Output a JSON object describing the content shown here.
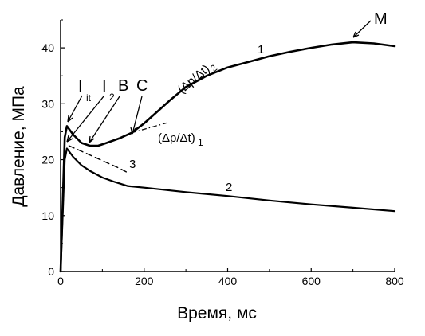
{
  "chart_data": {
    "type": "line",
    "title": "",
    "xlabel": "Время, мс",
    "ylabel": "Давление, МПа",
    "xlim": [
      0,
      800
    ],
    "ylim": [
      0,
      45
    ],
    "xticks": [
      0,
      200,
      400,
      600,
      800
    ],
    "yticks": [
      0,
      10,
      20,
      30,
      40
    ],
    "grid": false,
    "legend": "none",
    "series": [
      {
        "name": "1",
        "x": [
          0,
          5,
          10,
          15,
          20,
          30,
          50,
          70,
          90,
          110,
          140,
          170,
          200,
          230,
          260,
          300,
          350,
          400,
          450,
          500,
          550,
          600,
          650,
          700,
          750,
          800
        ],
        "y": [
          0,
          12,
          24,
          26,
          25.5,
          24.5,
          23,
          22.5,
          22.5,
          23,
          23.8,
          24.8,
          26.5,
          28.5,
          30.5,
          33,
          35,
          36.5,
          37.5,
          38.5,
          39.3,
          40,
          40.6,
          41,
          40.8,
          40.3
        ]
      },
      {
        "name": "2",
        "x": [
          0,
          5,
          10,
          15,
          20,
          30,
          50,
          70,
          100,
          130,
          160,
          200,
          300,
          400,
          500,
          600,
          700,
          800
        ],
        "y": [
          0,
          10,
          20,
          22,
          21.5,
          20.5,
          19,
          18,
          16.8,
          16,
          15.3,
          15,
          14.2,
          13.5,
          12.7,
          12,
          11.4,
          10.8
        ]
      },
      {
        "name": "3",
        "x": [
          20,
          50,
          80,
          110,
          140,
          165
        ],
        "y": [
          22.5,
          21.5,
          20.5,
          19.5,
          18.5,
          17.5
        ]
      }
    ],
    "tangents": [
      {
        "label": "(Δp/Δt)₁",
        "x": [
          170,
          260
        ],
        "y": [
          24.8,
          26.7
        ]
      },
      {
        "label": "(Δp/Δt)₂",
        "x": [
          195,
          305
        ],
        "y": [
          26.3,
          33.3
        ]
      }
    ]
  },
  "annotations": {
    "curve1": "1",
    "curve2": "2",
    "curve3": "3",
    "i_it_main": "I",
    "i_it_sub": "it",
    "i2_main": "I",
    "i2_sub": "2",
    "b": "B",
    "c": "C",
    "m": "M",
    "slope1_main": "(Δp/Δt)",
    "slope1_sub": "1",
    "slope2_main": "(Δp/Δt)",
    "slope2_sub": "2"
  },
  "colors": {
    "line": "#000000",
    "background": "#ffffff"
  }
}
